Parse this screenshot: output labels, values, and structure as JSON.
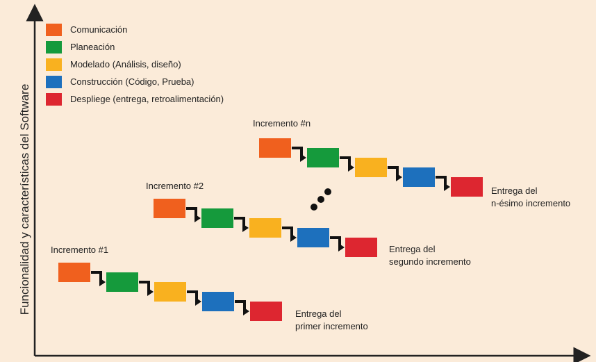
{
  "axis": {
    "y_label": "Funcionalidad y características del Software"
  },
  "colors": {
    "comunicacion": "#f0601e",
    "planeacion": "#159a3c",
    "modelado": "#f9b11f",
    "construccion": "#1d70bd",
    "despliegue": "#dd2630",
    "axis": "#222222",
    "arrow": "#111111",
    "background": "#fbebd9"
  },
  "legend": [
    {
      "label": "Comunicación",
      "color_key": "comunicacion"
    },
    {
      "label": "Planeación",
      "color_key": "planeacion"
    },
    {
      "label": "Modelado (Análisis, diseño)",
      "color_key": "modelado"
    },
    {
      "label": "Construcción (Código, Prueba)",
      "color_key": "construccion"
    },
    {
      "label": "Despliege (entrega, retroalimentación)",
      "color_key": "despliegue"
    }
  ],
  "increments": [
    {
      "title": "Incremento #1",
      "delivery_line1": "Entrega del",
      "delivery_line2": "primer incremento"
    },
    {
      "title": "Incremento #2",
      "delivery_line1": "Entrega del",
      "delivery_line2": "segundo incremento"
    },
    {
      "title": "Incremento #n",
      "delivery_line1": "Entrega del",
      "delivery_line2": "n-ésimo incremento"
    }
  ]
}
